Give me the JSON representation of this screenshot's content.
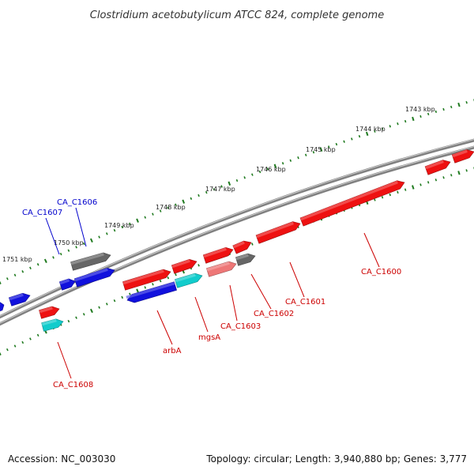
{
  "title": "Clostridium acetobutylicum ATCC 824, complete genome",
  "accession_text": "Accession: NC_003030",
  "topology_text": "Topology: circular; Length: 3,940,880 bp; Genes: 3,777",
  "colors": {
    "backbone": "#808080",
    "tick": "#1f7a1f",
    "forward_gene": "#ee1111",
    "reverse_gene": "#1111dd",
    "gray_gene": "#666666",
    "cyan_gene": "#11cccc",
    "pink_gene": "#ee7777",
    "forward_label": "#cc0000",
    "reverse_label": "#0000cc"
  },
  "scale": {
    "units": "kbp",
    "major_ticks": [
      "1743 kbp",
      "1744 kbp",
      "1745 kbp",
      "1746 kbp",
      "1747 kbp",
      "1748 kbp",
      "1749 kbp",
      "1750 kbp",
      "1751 kbp"
    ]
  },
  "gene_labels": [
    {
      "text": "CA_C1606",
      "strand": "reverse"
    },
    {
      "text": "CA_C1607",
      "strand": "reverse"
    },
    {
      "text": "CA_C1608",
      "strand": "forward"
    },
    {
      "text": "arbA",
      "strand": "forward"
    },
    {
      "text": "mgsA",
      "strand": "forward"
    },
    {
      "text": "CA_C1603",
      "strand": "forward"
    },
    {
      "text": "CA_C1602",
      "strand": "forward"
    },
    {
      "text": "CA_C1601",
      "strand": "forward"
    },
    {
      "text": "CA_C1600",
      "strand": "forward"
    }
  ]
}
